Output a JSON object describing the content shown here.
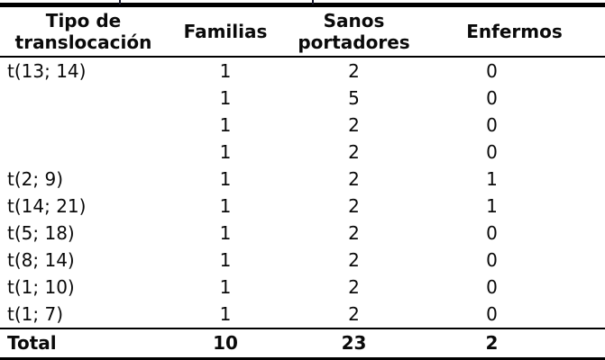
{
  "colors": {
    "text": "#0a0a0a",
    "rule": "#000000",
    "background": "#ffffff"
  },
  "table": {
    "headers": [
      "Tipo de\ntranslocación",
      "Familias",
      "Sanos\nportadores",
      "Enfermos"
    ],
    "rows": [
      [
        "t(13; 14)",
        "1",
        "2",
        "0"
      ],
      [
        "",
        "1",
        "5",
        "0"
      ],
      [
        "",
        "1",
        "2",
        "0"
      ],
      [
        "",
        "1",
        "2",
        "0"
      ],
      [
        "t(2; 9)",
        "1",
        "2",
        "1"
      ],
      [
        "t(14; 21)",
        "1",
        "2",
        "1"
      ],
      [
        "t(5; 18)",
        "1",
        "2",
        "0"
      ],
      [
        "t(8; 14)",
        "1",
        "2",
        "0"
      ],
      [
        "t(1; 10)",
        "1",
        "2",
        "0"
      ],
      [
        "t(1; 7)",
        "1",
        "2",
        "0"
      ]
    ],
    "total_row": [
      "Total",
      "10",
      "23",
      "2"
    ]
  }
}
